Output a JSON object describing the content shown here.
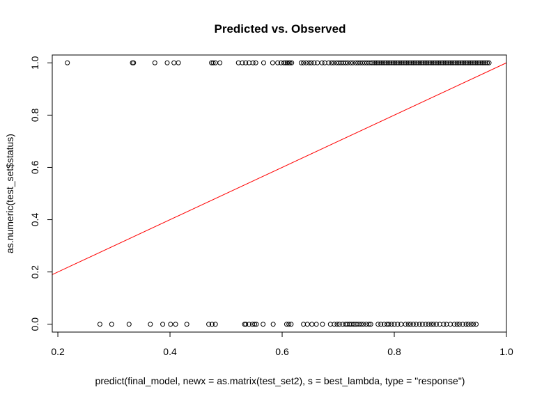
{
  "chart_data": {
    "type": "scatter",
    "title": "Predicted vs. Observed",
    "xlabel": "predict(final_model, newx = as.matrix(test_set2), s = best_lambda, type = \"response\")",
    "ylabel": "as.numeric(test_set$status)",
    "xlim": [
      0.19,
      1.0
    ],
    "ylim": [
      -0.03,
      1.03
    ],
    "xticks": [
      0.2,
      0.4,
      0.6,
      0.8,
      1.0
    ],
    "xtick_labels": [
      "0.2",
      "0.4",
      "0.6",
      "0.8",
      "1.0"
    ],
    "yticks": [
      0.0,
      0.2,
      0.4,
      0.6,
      0.8,
      1.0
    ],
    "ytick_labels": [
      "0.0",
      "0.2",
      "0.4",
      "0.6",
      "0.8",
      "1.0"
    ],
    "grid": false,
    "marker": "open-circle",
    "series": [
      {
        "y": 1,
        "x": [
          0.217,
          0.333,
          0.335,
          0.373,
          0.395,
          0.407,
          0.415,
          0.474,
          0.477,
          0.481,
          0.489,
          0.522,
          0.529,
          0.535,
          0.541,
          0.548,
          0.553,
          0.567,
          0.583,
          0.592,
          0.598,
          0.603,
          0.606,
          0.609,
          0.612,
          0.614,
          0.617,
          0.634,
          0.638,
          0.643,
          0.648,
          0.652,
          0.657,
          0.663,
          0.671,
          0.676,
          0.683,
          0.688,
          0.692,
          0.697,
          0.701,
          0.705,
          0.709,
          0.713,
          0.717,
          0.722,
          0.726,
          0.731,
          0.735,
          0.739,
          0.743,
          0.747,
          0.751,
          0.755,
          0.759,
          0.762,
          0.765,
          0.768,
          0.771,
          0.774,
          0.777,
          0.78,
          0.783,
          0.786,
          0.789,
          0.792,
          0.795,
          0.798,
          0.801,
          0.804,
          0.807,
          0.81,
          0.813,
          0.816,
          0.819,
          0.822,
          0.825,
          0.828,
          0.831,
          0.834,
          0.837,
          0.84,
          0.843,
          0.846,
          0.849,
          0.852,
          0.855,
          0.858,
          0.861,
          0.864,
          0.867,
          0.87,
          0.873,
          0.876,
          0.879,
          0.882,
          0.885,
          0.888,
          0.891,
          0.894,
          0.897,
          0.9,
          0.903,
          0.906,
          0.909,
          0.912,
          0.915,
          0.918,
          0.921,
          0.924,
          0.927,
          0.93,
          0.933,
          0.936,
          0.939,
          0.942,
          0.945,
          0.948,
          0.951,
          0.954,
          0.957,
          0.96,
          0.963,
          0.966,
          0.969
        ]
      },
      {
        "y": 0,
        "x": [
          0.275,
          0.296,
          0.327,
          0.365,
          0.387,
          0.401,
          0.41,
          0.43,
          0.469,
          0.475,
          0.481,
          0.533,
          0.535,
          0.541,
          0.547,
          0.551,
          0.554,
          0.566,
          0.584,
          0.608,
          0.612,
          0.616,
          0.638,
          0.645,
          0.653,
          0.661,
          0.672,
          0.686,
          0.693,
          0.698,
          0.702,
          0.708,
          0.713,
          0.716,
          0.72,
          0.723,
          0.727,
          0.73,
          0.733,
          0.737,
          0.741,
          0.745,
          0.75,
          0.755,
          0.758,
          0.771,
          0.776,
          0.782,
          0.787,
          0.79,
          0.795,
          0.8,
          0.806,
          0.812,
          0.82,
          0.825,
          0.829,
          0.834,
          0.839,
          0.845,
          0.85,
          0.856,
          0.861,
          0.866,
          0.87,
          0.875,
          0.881,
          0.888,
          0.893,
          0.9,
          0.907,
          0.912,
          0.916,
          0.922,
          0.928,
          0.932,
          0.937,
          0.941,
          0.946
        ]
      }
    ],
    "reference_line": {
      "from": [
        0.19,
        0.19
      ],
      "to": [
        1.0,
        1.0
      ],
      "color": "#ff0000"
    }
  }
}
